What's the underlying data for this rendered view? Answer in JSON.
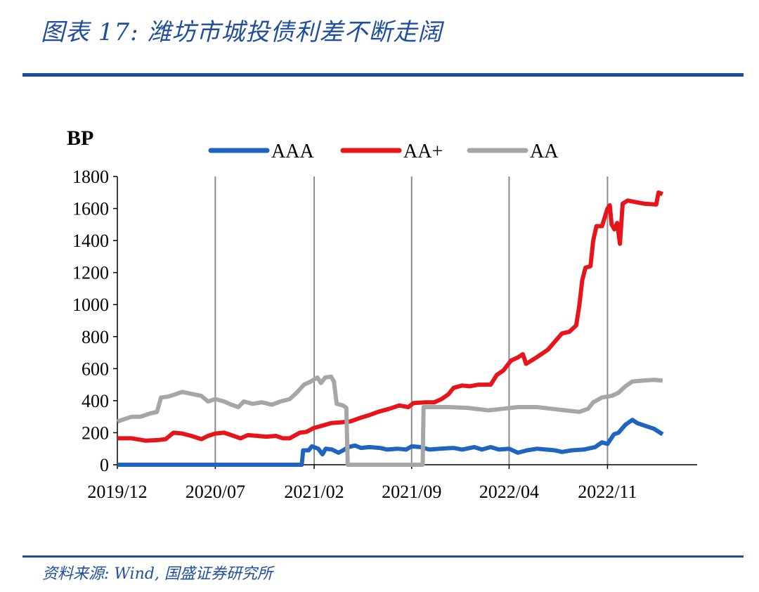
{
  "header": {
    "title": "图表 17: 潍坊市城投债利差不断走阔"
  },
  "footer": {
    "source": "资料来源: Wind, 国盛证券研究所"
  },
  "chart_data": {
    "type": "line",
    "unit_label": "BP",
    "ylim": [
      0,
      1800
    ],
    "yticks": [
      0,
      200,
      400,
      600,
      800,
      1000,
      1200,
      1400,
      1600,
      1800
    ],
    "xlim": [
      "2019-12-01",
      "2023-05-15"
    ],
    "xticks": [
      {
        "label": "2019/12",
        "date": "2019-12-01"
      },
      {
        "label": "2020/07",
        "date": "2020-07-01"
      },
      {
        "label": "2021/02",
        "date": "2021-02-01"
      },
      {
        "label": "2021/09",
        "date": "2021-09-01"
      },
      {
        "label": "2022/04",
        "date": "2022-04-01"
      },
      {
        "label": "2022/11",
        "date": "2022-11-01"
      }
    ],
    "grid": "vertical",
    "legend": "top",
    "series": [
      {
        "name": "AAA",
        "color": "#1f64c0",
        "points": [
          [
            "2019-12-01",
            0
          ],
          [
            "2020-07-01",
            0
          ],
          [
            "2020-12-01",
            0
          ],
          [
            "2021-01-05",
            0
          ],
          [
            "2021-01-08",
            90
          ],
          [
            "2021-01-20",
            90
          ],
          [
            "2021-01-27",
            115
          ],
          [
            "2021-02-10",
            100
          ],
          [
            "2021-02-19",
            65
          ],
          [
            "2021-02-26",
            100
          ],
          [
            "2021-03-12",
            95
          ],
          [
            "2021-03-26",
            75
          ],
          [
            "2021-04-05",
            90
          ],
          [
            "2021-04-16",
            110
          ],
          [
            "2021-05-01",
            120
          ],
          [
            "2021-05-14",
            105
          ],
          [
            "2021-06-01",
            110
          ],
          [
            "2021-06-24",
            105
          ],
          [
            "2021-07-10",
            95
          ],
          [
            "2021-08-01",
            100
          ],
          [
            "2021-08-20",
            95
          ],
          [
            "2021-09-01",
            115
          ],
          [
            "2021-09-20",
            110
          ],
          [
            "2021-10-10",
            95
          ],
          [
            "2021-11-01",
            100
          ],
          [
            "2021-12-01",
            105
          ],
          [
            "2021-12-20",
            95
          ],
          [
            "2022-01-15",
            110
          ],
          [
            "2022-02-01",
            95
          ],
          [
            "2022-02-20",
            110
          ],
          [
            "2022-03-10",
            95
          ],
          [
            "2022-04-01",
            100
          ],
          [
            "2022-04-20",
            75
          ],
          [
            "2022-05-10",
            90
          ],
          [
            "2022-06-01",
            100
          ],
          [
            "2022-06-20",
            95
          ],
          [
            "2022-07-10",
            90
          ],
          [
            "2022-07-25",
            80
          ],
          [
            "2022-08-15",
            90
          ],
          [
            "2022-09-10",
            95
          ],
          [
            "2022-10-05",
            110
          ],
          [
            "2022-10-20",
            140
          ],
          [
            "2022-11-01",
            130
          ],
          [
            "2022-11-15",
            190
          ],
          [
            "2022-11-25",
            200
          ],
          [
            "2022-12-10",
            250
          ],
          [
            "2022-12-25",
            280
          ],
          [
            "2023-01-05",
            260
          ],
          [
            "2023-01-25",
            240
          ],
          [
            "2023-02-10",
            225
          ],
          [
            "2023-03-01",
            190
          ]
        ]
      },
      {
        "name": "AA+",
        "color": "#e8141c",
        "points": [
          [
            "2019-12-01",
            165
          ],
          [
            "2020-01-01",
            165
          ],
          [
            "2020-02-01",
            150
          ],
          [
            "2020-03-01",
            155
          ],
          [
            "2020-03-15",
            160
          ],
          [
            "2020-04-01",
            200
          ],
          [
            "2020-04-20",
            195
          ],
          [
            "2020-05-10",
            180
          ],
          [
            "2020-06-01",
            160
          ],
          [
            "2020-06-15",
            180
          ],
          [
            "2020-07-01",
            195
          ],
          [
            "2020-07-20",
            200
          ],
          [
            "2020-08-10",
            180
          ],
          [
            "2020-08-25",
            165
          ],
          [
            "2020-09-10",
            185
          ],
          [
            "2020-10-01",
            180
          ],
          [
            "2020-10-20",
            175
          ],
          [
            "2020-11-10",
            180
          ],
          [
            "2020-11-25",
            165
          ],
          [
            "2020-12-10",
            165
          ],
          [
            "2021-01-01",
            200
          ],
          [
            "2021-01-15",
            205
          ],
          [
            "2021-02-01",
            230
          ],
          [
            "2021-02-20",
            245
          ],
          [
            "2021-03-10",
            260
          ],
          [
            "2021-04-01",
            265
          ],
          [
            "2021-04-20",
            270
          ],
          [
            "2021-05-10",
            290
          ],
          [
            "2021-06-01",
            310
          ],
          [
            "2021-06-20",
            330
          ],
          [
            "2021-07-15",
            350
          ],
          [
            "2021-08-05",
            370
          ],
          [
            "2021-08-25",
            360
          ],
          [
            "2021-09-05",
            385
          ],
          [
            "2021-10-01",
            390
          ],
          [
            "2021-10-20",
            390
          ],
          [
            "2021-11-05",
            410
          ],
          [
            "2021-11-20",
            440
          ],
          [
            "2021-12-01",
            480
          ],
          [
            "2021-12-20",
            495
          ],
          [
            "2022-01-05",
            490
          ],
          [
            "2022-01-25",
            500
          ],
          [
            "2022-02-20",
            500
          ],
          [
            "2022-03-05",
            560
          ],
          [
            "2022-03-20",
            590
          ],
          [
            "2022-04-05",
            650
          ],
          [
            "2022-04-20",
            670
          ],
          [
            "2022-05-01",
            690
          ],
          [
            "2022-05-08",
            630
          ],
          [
            "2022-05-25",
            660
          ],
          [
            "2022-06-10",
            690
          ],
          [
            "2022-06-25",
            720
          ],
          [
            "2022-07-10",
            770
          ],
          [
            "2022-07-25",
            820
          ],
          [
            "2022-08-10",
            830
          ],
          [
            "2022-08-25",
            870
          ],
          [
            "2022-09-01",
            1000
          ],
          [
            "2022-09-07",
            1150
          ],
          [
            "2022-09-14",
            1230
          ],
          [
            "2022-09-25",
            1240
          ],
          [
            "2022-10-01",
            1400
          ],
          [
            "2022-10-08",
            1490
          ],
          [
            "2022-10-20",
            1490
          ],
          [
            "2022-11-01",
            1600
          ],
          [
            "2022-11-06",
            1620
          ],
          [
            "2022-11-10",
            1500
          ],
          [
            "2022-11-16",
            1470
          ],
          [
            "2022-11-22",
            1510
          ],
          [
            "2022-11-28",
            1380
          ],
          [
            "2022-12-04",
            1630
          ],
          [
            "2022-12-15",
            1650
          ],
          [
            "2023-01-01",
            1640
          ],
          [
            "2023-01-20",
            1630
          ],
          [
            "2023-02-15",
            1625
          ],
          [
            "2023-02-20",
            1700
          ],
          [
            "2023-03-01",
            1690
          ]
        ]
      },
      {
        "name": "AA",
        "color": "#a6a6a6",
        "points": [
          [
            "2019-12-01",
            270
          ],
          [
            "2020-01-01",
            300
          ],
          [
            "2020-01-20",
            300
          ],
          [
            "2020-02-10",
            320
          ],
          [
            "2020-02-25",
            330
          ],
          [
            "2020-03-05",
            420
          ],
          [
            "2020-03-20",
            425
          ],
          [
            "2020-04-05",
            440
          ],
          [
            "2020-04-20",
            455
          ],
          [
            "2020-05-15",
            440
          ],
          [
            "2020-06-01",
            430
          ],
          [
            "2020-06-15",
            395
          ],
          [
            "2020-07-01",
            410
          ],
          [
            "2020-07-20",
            395
          ],
          [
            "2020-08-05",
            375
          ],
          [
            "2020-08-20",
            360
          ],
          [
            "2020-09-01",
            395
          ],
          [
            "2020-09-20",
            380
          ],
          [
            "2020-10-10",
            390
          ],
          [
            "2020-11-01",
            375
          ],
          [
            "2020-11-20",
            395
          ],
          [
            "2020-12-10",
            410
          ],
          [
            "2020-12-25",
            450
          ],
          [
            "2021-01-10",
            500
          ],
          [
            "2021-01-25",
            520
          ],
          [
            "2021-02-08",
            545
          ],
          [
            "2021-02-16",
            510
          ],
          [
            "2021-02-25",
            545
          ],
          [
            "2021-03-10",
            550
          ],
          [
            "2021-03-16",
            520
          ],
          [
            "2021-03-22",
            380
          ],
          [
            "2021-04-05",
            370
          ],
          [
            "2021-04-12",
            355
          ],
          [
            "2021-04-15",
            0
          ],
          [
            "2021-09-25",
            0
          ],
          [
            "2021-09-27",
            360
          ],
          [
            "2021-10-20",
            360
          ],
          [
            "2021-11-20",
            360
          ],
          [
            "2022-01-01",
            355
          ],
          [
            "2022-02-15",
            340
          ],
          [
            "2022-03-20",
            350
          ],
          [
            "2022-04-20",
            360
          ],
          [
            "2022-06-01",
            360
          ],
          [
            "2022-07-01",
            350
          ],
          [
            "2022-08-01",
            340
          ],
          [
            "2022-09-01",
            330
          ],
          [
            "2022-09-20",
            350
          ],
          [
            "2022-10-01",
            390
          ],
          [
            "2022-10-20",
            420
          ],
          [
            "2022-11-10",
            430
          ],
          [
            "2022-11-25",
            450
          ],
          [
            "2022-12-10",
            490
          ],
          [
            "2022-12-25",
            520
          ],
          [
            "2023-01-15",
            525
          ],
          [
            "2023-02-10",
            530
          ],
          [
            "2023-03-01",
            525
          ]
        ]
      }
    ]
  }
}
